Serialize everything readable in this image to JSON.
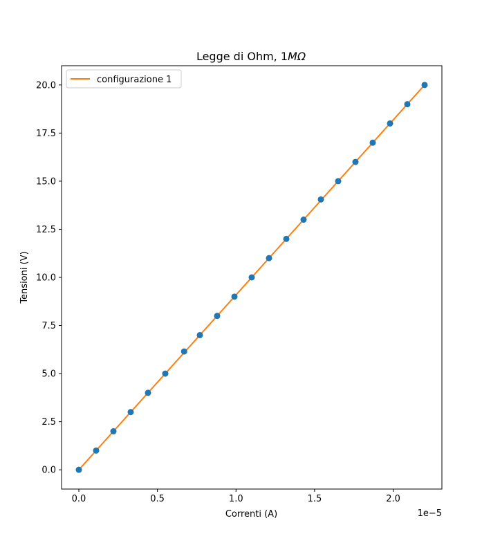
{
  "chart_data": {
    "type": "line",
    "title": "Legge di Ohm, 1",
    "title_math": "MΩ",
    "xlabel": "Correnti (A)",
    "ylabel": "Tensioni (V)",
    "x_offset_text": "1e−5",
    "x_multiplier": 1e-05,
    "xlim": [
      -0.11,
      2.31
    ],
    "ylim": [
      -1.0,
      21.0
    ],
    "x_ticks": [
      0.0,
      0.5,
      1.0,
      1.5,
      2.0
    ],
    "x_tick_labels": [
      "0.0",
      "0.5",
      "1.0",
      "1.5",
      "2.0"
    ],
    "y_ticks": [
      0.0,
      2.5,
      5.0,
      7.5,
      10.0,
      12.5,
      15.0,
      17.5,
      20.0
    ],
    "y_tick_labels": [
      "0.0",
      "2.5",
      "5.0",
      "7.5",
      "10.0",
      "12.5",
      "15.0",
      "17.5",
      "20.0"
    ],
    "grid": false,
    "legend_position": "top-left",
    "series": [
      {
        "name": "configurazione 1",
        "kind": "line",
        "color": "#ff7f0e",
        "x": [
          0.0,
          2.2
        ],
        "y": [
          0.0,
          20.0
        ]
      },
      {
        "kind": "scatter",
        "color": "#1f77b4",
        "x": [
          0.0,
          0.11,
          0.22,
          0.33,
          0.44,
          0.55,
          0.67,
          0.77,
          0.88,
          0.99,
          1.1,
          1.21,
          1.32,
          1.43,
          1.54,
          1.65,
          1.76,
          1.87,
          1.98,
          2.09,
          2.2
        ],
        "y": [
          0.0,
          1.0,
          2.0,
          3.0,
          4.0,
          5.0,
          6.15,
          7.0,
          8.0,
          9.0,
          10.0,
          11.0,
          12.0,
          13.0,
          14.05,
          15.0,
          16.0,
          17.0,
          18.0,
          19.0,
          20.0
        ]
      }
    ]
  }
}
